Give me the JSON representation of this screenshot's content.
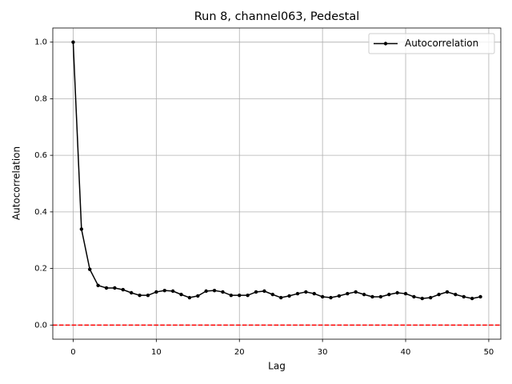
{
  "chart_data": {
    "type": "line",
    "title": "Run 8, channel063, Pedestal",
    "xlabel": "Lag",
    "ylabel": "Autocorrelation",
    "x": [
      0,
      1,
      2,
      3,
      4,
      5,
      6,
      7,
      8,
      9,
      10,
      11,
      12,
      13,
      14,
      15,
      16,
      17,
      18,
      19,
      20,
      21,
      22,
      23,
      24,
      25,
      26,
      27,
      28,
      29,
      30,
      31,
      32,
      33,
      34,
      35,
      36,
      37,
      38,
      39,
      40,
      41,
      42,
      43,
      44,
      45,
      46,
      47,
      48,
      49
    ],
    "series": [
      {
        "name": "Autocorrelation",
        "color": "#000000",
        "values": [
          1.0,
          0.339,
          0.197,
          0.14,
          0.131,
          0.131,
          0.125,
          0.114,
          0.105,
          0.105,
          0.117,
          0.122,
          0.12,
          0.108,
          0.097,
          0.103,
          0.12,
          0.122,
          0.117,
          0.105,
          0.105,
          0.105,
          0.117,
          0.12,
          0.108,
          0.097,
          0.103,
          0.111,
          0.117,
          0.111,
          0.1,
          0.097,
          0.103,
          0.111,
          0.117,
          0.108,
          0.1,
          0.1,
          0.108,
          0.114,
          0.111,
          0.1,
          0.094,
          0.097,
          0.108,
          0.117,
          0.108,
          0.1,
          0.094,
          0.1
        ]
      }
    ],
    "reference_line": {
      "y": 0,
      "color": "#ff0000"
    },
    "xlim": [
      -2.45,
      51.45
    ],
    "xticks": [
      0,
      10,
      20,
      30,
      40,
      50
    ],
    "ylim": [
      -0.05,
      1.05
    ],
    "yticks": [
      {
        "value": 0,
        "label": "0.0"
      },
      0.2,
      0.4,
      0.6,
      0.8,
      {
        "value": 1,
        "label": "1.0"
      }
    ],
    "grid": true,
    "legend": "upper right"
  }
}
